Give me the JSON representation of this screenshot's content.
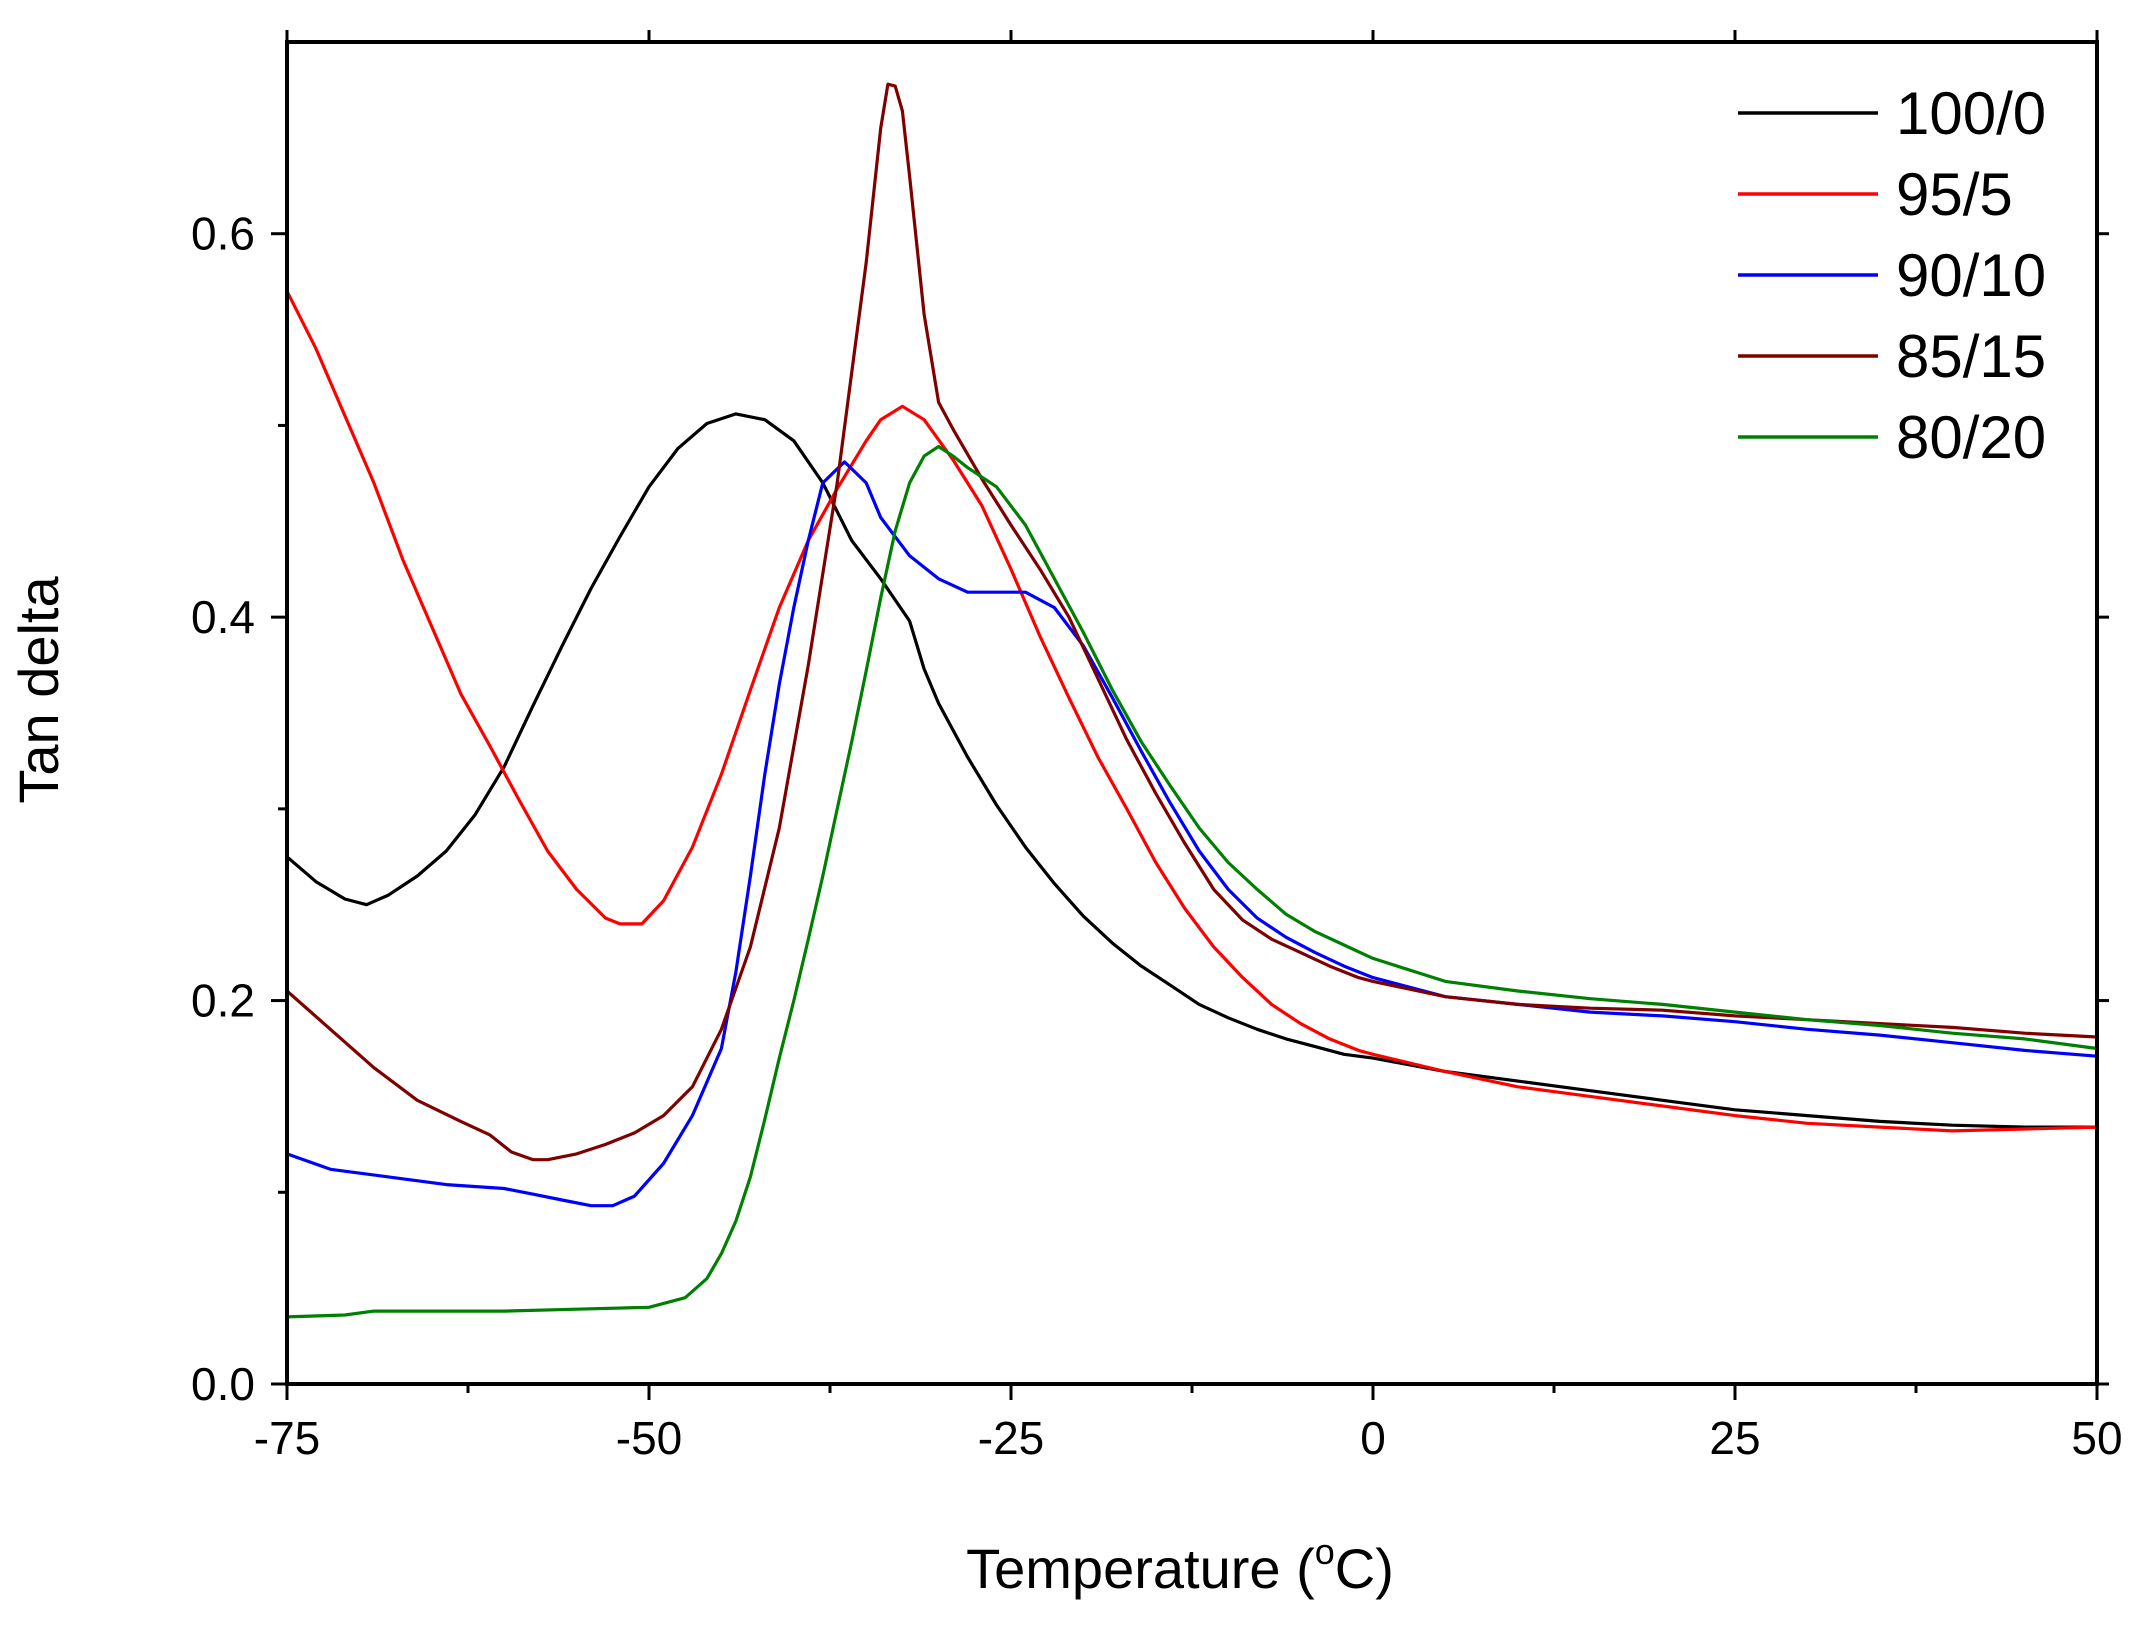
{
  "chart_data": {
    "type": "line",
    "title": "",
    "xlabel": "Temperature (",
    "xlabel_sup": "o",
    "xlabel_suffix": "C)",
    "ylabel": "Tan delta",
    "xlim": [
      -75,
      50
    ],
    "ylim": [
      0.0,
      0.7
    ],
    "x_ticks": [
      -75,
      -50,
      -25,
      0,
      25,
      50
    ],
    "x_tick_labels": [
      "-75",
      "-50",
      "-25",
      "0",
      "25",
      "50"
    ],
    "x_minor_ticks": [
      -62.5,
      -37.5,
      -12.5,
      12.5,
      37.5
    ],
    "y_ticks": [
      0.0,
      0.2,
      0.4,
      0.6
    ],
    "y_tick_labels": [
      "0.0",
      "0.2",
      "0.4",
      "0.6"
    ],
    "y_minor_ticks": [
      0.1,
      0.3,
      0.5
    ],
    "grid": false,
    "legend_position": "top-right",
    "series": [
      {
        "name": "100/0",
        "color": "#000000",
        "x": [
          -75,
          -73,
          -71,
          -69.5,
          -68,
          -66,
          -64,
          -62,
          -60,
          -58,
          -56,
          -54,
          -52,
          -50,
          -48,
          -46,
          -44,
          -42,
          -40,
          -38,
          -36,
          -34,
          -32,
          -31,
          -30,
          -28,
          -26,
          -24,
          -22,
          -20,
          -18,
          -16,
          -14,
          -12,
          -10,
          -8,
          -6,
          -4,
          -2,
          0,
          5,
          10,
          15,
          20,
          25,
          30,
          35,
          40,
          45,
          50
        ],
        "values": [
          0.275,
          0.262,
          0.253,
          0.25,
          0.255,
          0.265,
          0.278,
          0.297,
          0.322,
          0.354,
          0.385,
          0.415,
          0.442,
          0.468,
          0.488,
          0.501,
          0.506,
          0.503,
          0.492,
          0.47,
          0.44,
          0.42,
          0.398,
          0.373,
          0.355,
          0.327,
          0.302,
          0.28,
          0.261,
          0.244,
          0.23,
          0.218,
          0.208,
          0.198,
          0.191,
          0.185,
          0.18,
          0.176,
          0.172,
          0.17,
          0.163,
          0.158,
          0.153,
          0.148,
          0.143,
          0.14,
          0.137,
          0.135,
          0.134,
          0.134
        ]
      },
      {
        "name": "95/5",
        "color": "#ff0000",
        "x": [
          -75,
          -73,
          -71,
          -69,
          -67,
          -65,
          -63,
          -61,
          -59,
          -57,
          -55,
          -53,
          -52,
          -50.5,
          -49,
          -47,
          -45,
          -43,
          -41,
          -39,
          -37,
          -35,
          -34,
          -32.5,
          -31,
          -29,
          -27,
          -25,
          -23,
          -21,
          -19,
          -17,
          -15,
          -13,
          -11,
          -9,
          -7,
          -5,
          -3,
          -1,
          0,
          5,
          10,
          15,
          20,
          25,
          30,
          35,
          40,
          45,
          50
        ],
        "values": [
          0.57,
          0.54,
          0.505,
          0.47,
          0.43,
          0.395,
          0.36,
          0.333,
          0.305,
          0.278,
          0.258,
          0.243,
          0.24,
          0.24,
          0.252,
          0.28,
          0.318,
          0.362,
          0.405,
          0.44,
          0.467,
          0.492,
          0.503,
          0.51,
          0.503,
          0.482,
          0.458,
          0.425,
          0.39,
          0.358,
          0.327,
          0.3,
          0.272,
          0.248,
          0.228,
          0.212,
          0.198,
          0.188,
          0.18,
          0.174,
          0.172,
          0.163,
          0.155,
          0.15,
          0.145,
          0.14,
          0.136,
          0.134,
          0.132,
          0.133,
          0.134
        ]
      },
      {
        "name": "90/10",
        "color": "#0000ff",
        "x": [
          -75,
          -72,
          -68,
          -64,
          -60,
          -58,
          -56,
          -54,
          -52.5,
          -51,
          -49,
          -47,
          -45,
          -44,
          -43,
          -42,
          -41,
          -40,
          -39,
          -38,
          -36.5,
          -35,
          -34,
          -32,
          -30,
          -28,
          -26,
          -24,
          -22,
          -20,
          -18,
          -16,
          -14,
          -12,
          -10,
          -8,
          -6,
          -4,
          -2,
          0,
          5,
          10,
          15,
          20,
          25,
          30,
          35,
          40,
          45,
          50
        ],
        "values": [
          0.12,
          0.112,
          0.108,
          0.104,
          0.102,
          0.099,
          0.096,
          0.093,
          0.093,
          0.098,
          0.115,
          0.14,
          0.175,
          0.215,
          0.265,
          0.318,
          0.365,
          0.405,
          0.44,
          0.47,
          0.481,
          0.47,
          0.452,
          0.432,
          0.42,
          0.413,
          0.413,
          0.413,
          0.405,
          0.385,
          0.358,
          0.33,
          0.303,
          0.278,
          0.258,
          0.243,
          0.233,
          0.225,
          0.218,
          0.212,
          0.202,
          0.198,
          0.194,
          0.192,
          0.189,
          0.185,
          0.182,
          0.178,
          0.174,
          0.171
        ]
      },
      {
        "name": "85/15",
        "color": "#800000",
        "x": [
          -75,
          -72,
          -69,
          -66,
          -63,
          -61,
          -59.5,
          -58,
          -57,
          -55,
          -53,
          -51,
          -49,
          -47,
          -45,
          -43,
          -41,
          -39,
          -37,
          -35,
          -34,
          -33.5,
          -33,
          -32.5,
          -32,
          -31,
          -30,
          -29,
          -27,
          -25,
          -23,
          -21,
          -19,
          -17,
          -15,
          -13,
          -11,
          -9,
          -7,
          -5,
          -3,
          -1,
          0,
          5,
          10,
          15,
          20,
          25,
          30,
          35,
          40,
          45,
          50
        ],
        "values": [
          0.205,
          0.185,
          0.165,
          0.148,
          0.137,
          0.13,
          0.121,
          0.117,
          0.117,
          0.12,
          0.125,
          0.131,
          0.14,
          0.155,
          0.185,
          0.228,
          0.29,
          0.375,
          0.47,
          0.585,
          0.655,
          0.678,
          0.677,
          0.664,
          0.63,
          0.558,
          0.512,
          0.498,
          0.472,
          0.448,
          0.425,
          0.4,
          0.368,
          0.336,
          0.308,
          0.282,
          0.258,
          0.242,
          0.232,
          0.225,
          0.218,
          0.212,
          0.21,
          0.202,
          0.198,
          0.196,
          0.195,
          0.192,
          0.19,
          0.188,
          0.186,
          0.183,
          0.181
        ]
      },
      {
        "name": "80/20",
        "color": "#008000",
        "x": [
          -75,
          -71,
          -69,
          -65,
          -60,
          -55,
          -50,
          -47.5,
          -46,
          -45,
          -44,
          -43,
          -42,
          -41,
          -40,
          -39,
          -38,
          -37,
          -36,
          -35,
          -34,
          -33,
          -32,
          -31,
          -30,
          -29,
          -28,
          -26,
          -24,
          -22,
          -20,
          -18,
          -16,
          -14,
          -12,
          -10,
          -8,
          -6,
          -4,
          -2,
          0,
          5,
          10,
          15,
          20,
          25,
          30,
          35,
          40,
          45,
          50
        ],
        "values": [
          0.035,
          0.036,
          0.038,
          0.038,
          0.038,
          0.039,
          0.04,
          0.045,
          0.055,
          0.068,
          0.085,
          0.108,
          0.138,
          0.17,
          0.2,
          0.232,
          0.265,
          0.3,
          0.335,
          0.372,
          0.41,
          0.445,
          0.47,
          0.484,
          0.489,
          0.484,
          0.478,
          0.468,
          0.448,
          0.42,
          0.392,
          0.362,
          0.335,
          0.312,
          0.29,
          0.272,
          0.258,
          0.245,
          0.236,
          0.229,
          0.222,
          0.21,
          0.205,
          0.201,
          0.198,
          0.194,
          0.19,
          0.187,
          0.183,
          0.18,
          0.175
        ]
      }
    ]
  }
}
